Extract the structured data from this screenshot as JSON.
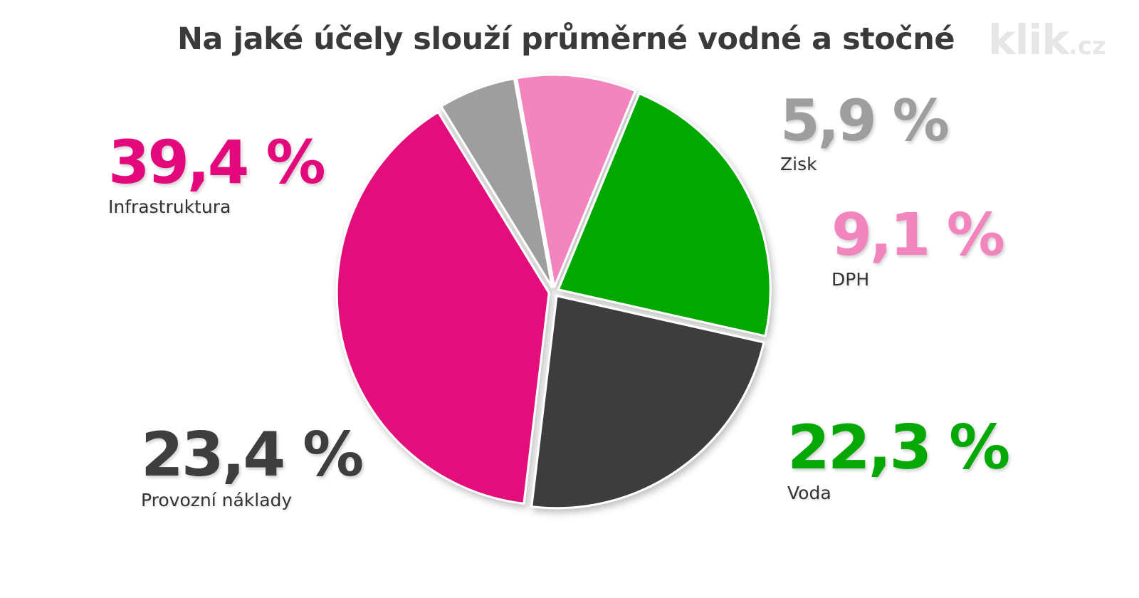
{
  "chart_data": {
    "type": "pie",
    "title": "Na jaké účely slouží průměrné vodné a stočné",
    "unit": "%",
    "slices": [
      {
        "label": "Infrastruktura",
        "value": 39.4,
        "display": "39,4 %",
        "color": "#E3097C"
      },
      {
        "label": "Zisk",
        "value": 5.9,
        "display": "5,9 %",
        "color": "#9E9E9E"
      },
      {
        "label": "DPH",
        "value": 9.1,
        "display": "9,1 %",
        "color": "#F285BE"
      },
      {
        "label": "Voda",
        "value": 22.3,
        "display": "22,3 %",
        "color": "#05A805"
      },
      {
        "label": "Provozní náklady",
        "value": 23.4,
        "display": "23,4 %",
        "color": "#3E3E3E"
      }
    ]
  },
  "logo": {
    "main": "klik",
    "tld": ".cz"
  }
}
